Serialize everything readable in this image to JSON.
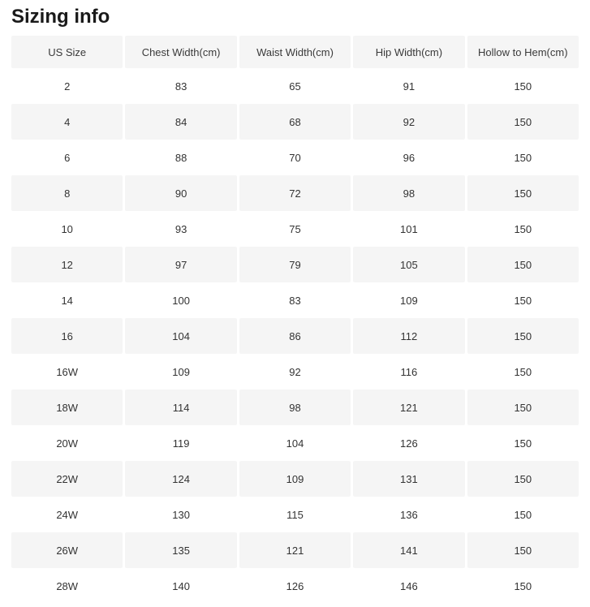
{
  "page": {
    "title": "Sizing info"
  },
  "table": {
    "headers": [
      "US Size",
      "Chest Width(cm)",
      "Waist Width(cm)",
      "Hip Width(cm)",
      "Hollow to Hem(cm)"
    ],
    "rows": [
      [
        "2",
        "83",
        "65",
        "91",
        "150"
      ],
      [
        "4",
        "84",
        "68",
        "92",
        "150"
      ],
      [
        "6",
        "88",
        "70",
        "96",
        "150"
      ],
      [
        "8",
        "90",
        "72",
        "98",
        "150"
      ],
      [
        "10",
        "93",
        "75",
        "101",
        "150"
      ],
      [
        "12",
        "97",
        "79",
        "105",
        "150"
      ],
      [
        "14",
        "100",
        "83",
        "109",
        "150"
      ],
      [
        "16",
        "104",
        "86",
        "112",
        "150"
      ],
      [
        "16W",
        "109",
        "92",
        "116",
        "150"
      ],
      [
        "18W",
        "114",
        "98",
        "121",
        "150"
      ],
      [
        "20W",
        "119",
        "104",
        "126",
        "150"
      ],
      [
        "22W",
        "124",
        "109",
        "131",
        "150"
      ],
      [
        "24W",
        "130",
        "115",
        "136",
        "150"
      ],
      [
        "26W",
        "135",
        "121",
        "141",
        "150"
      ],
      [
        "28W",
        "140",
        "126",
        "146",
        "150"
      ]
    ]
  },
  "colors": {
    "row_alt_bg": "#f5f5f5",
    "header_bg": "#f5f5f5",
    "text": "#333333",
    "title_text": "#1a1a1a",
    "page_bg": "#ffffff"
  }
}
